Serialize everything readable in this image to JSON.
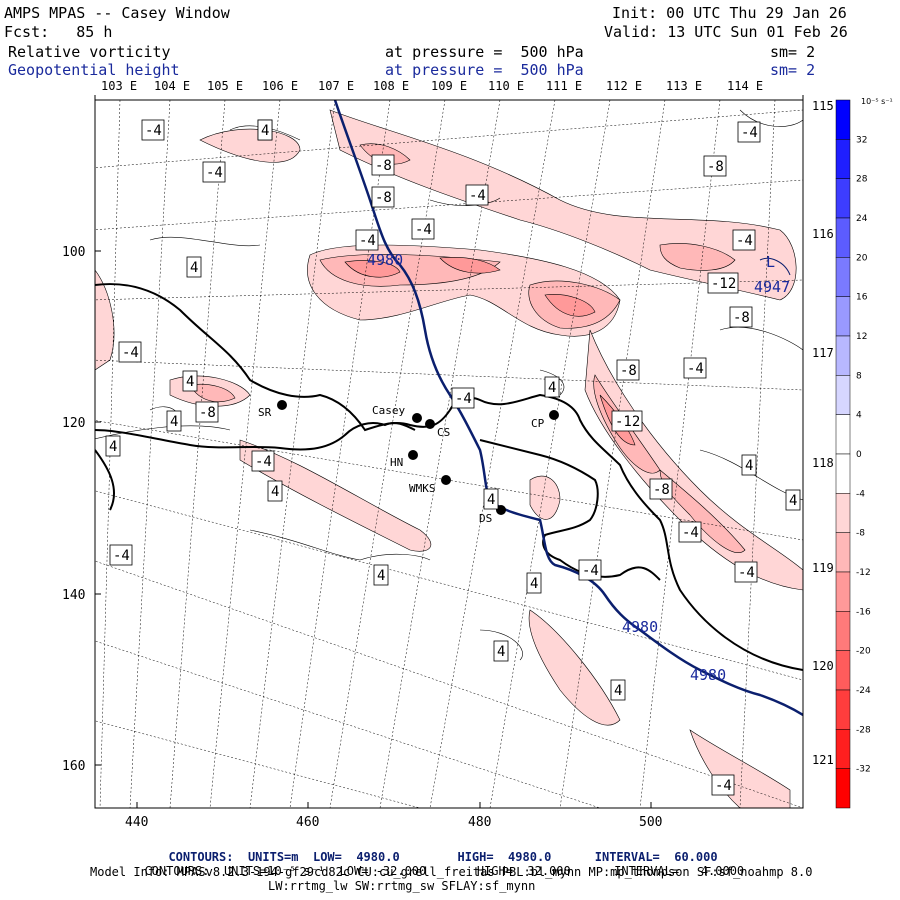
{
  "header": {
    "title": "AMPS MPAS -- Casey Window",
    "fcst": "Fcst:   85 h",
    "init": "Init: 00 UTC Thu 29 Jan 26",
    "valid": "Valid: 13 UTC Sun 01 Feb 26",
    "field1": {
      "name": "Relative vorticity",
      "pressure": "at pressure =  500 hPa",
      "sm": "sm= 2"
    },
    "field2": {
      "name": "Geopotential height",
      "pressure": "at pressure =  500 hPa",
      "sm": "sm= 2"
    }
  },
  "colorbar": {
    "unit": "10⁻⁵ s⁻¹",
    "ticks": [
      "32",
      "28",
      "24",
      "20",
      "16",
      "12",
      "8",
      "4",
      "0",
      "-4",
      "-8",
      "-12",
      "-16",
      "-20",
      "-24",
      "-28",
      "-32"
    ],
    "colors": [
      "#0000ff",
      "#1f1fff",
      "#3d3dff",
      "#5c5cff",
      "#7a7aff",
      "#9999ff",
      "#b8b8ff",
      "#d6d6ff",
      "#ffffff",
      "#ffffff",
      "#ffd6d6",
      "#ffb8b8",
      "#ff9999",
      "#ff7a7a",
      "#ff5c5c",
      "#ff3d3d",
      "#ff1f1f",
      "#ff0000"
    ]
  },
  "axes": {
    "x_ticks": [
      "440",
      "460",
      "480",
      "500"
    ],
    "y_ticks": [
      "100",
      "120",
      "140",
      "160"
    ],
    "lon_labels_top": [
      "103 E",
      "104 E",
      "105 E",
      "106 E",
      "107 E",
      "108 E",
      "109 E",
      "110 E",
      "111 E",
      "112 E",
      "113 E",
      "114 E"
    ],
    "lon_labels_right": [
      "115 E",
      "116 E",
      "117 E",
      "118 E",
      "119 E",
      "120 E",
      "121 E"
    ]
  },
  "places": [
    {
      "name": "SR"
    },
    {
      "name": "Casey"
    },
    {
      "name": "CS"
    },
    {
      "name": "HN"
    },
    {
      "name": "WMKS"
    },
    {
      "name": "DS"
    },
    {
      "name": "CP"
    }
  ],
  "height_labels": [
    "4980",
    "4980",
    "4980",
    "4947",
    "L"
  ],
  "contour_labels": [
    "-4",
    "4",
    "-4",
    "-8",
    "-8",
    "-4",
    "-4",
    "4",
    "-4",
    "4",
    "-4",
    "-12",
    "-8",
    "-4",
    "-8",
    "4",
    "4",
    "-12",
    "-4",
    "-8",
    "4",
    "4",
    "4",
    "-4",
    "-4",
    "-8",
    "4",
    "-4",
    "4",
    "4",
    "-4",
    "4",
    "-4",
    "4",
    "-4",
    "4",
    "4",
    "-4",
    "-4",
    "-8"
  ],
  "footer": {
    "line1": {
      "label": "CONTOURS:",
      "units": "UNITS=m",
      "low": "LOW=  4980.0",
      "high": "HIGH=  4980.0",
      "interval": "INTERVAL=  60.000"
    },
    "line2": {
      "label": "CONTOURS:",
      "units": "UNITS=10⁻⁵ s⁻¹",
      "low": "LOW= -32.000",
      "high": "HIGH=  32.000",
      "interval": "INTERVAL=   4.0000"
    },
    "model_info": "Model Info: MPASv8.2.3-194-gf29cd82c CU:cu_grell_freitas PBL:bl_mynn MP:mp_thompson SF:sf_noahmp 8.0",
    "model_info2": "LW:rrtmg_lw SW:rrtmg_sw SFLAY:sf_mynn"
  }
}
